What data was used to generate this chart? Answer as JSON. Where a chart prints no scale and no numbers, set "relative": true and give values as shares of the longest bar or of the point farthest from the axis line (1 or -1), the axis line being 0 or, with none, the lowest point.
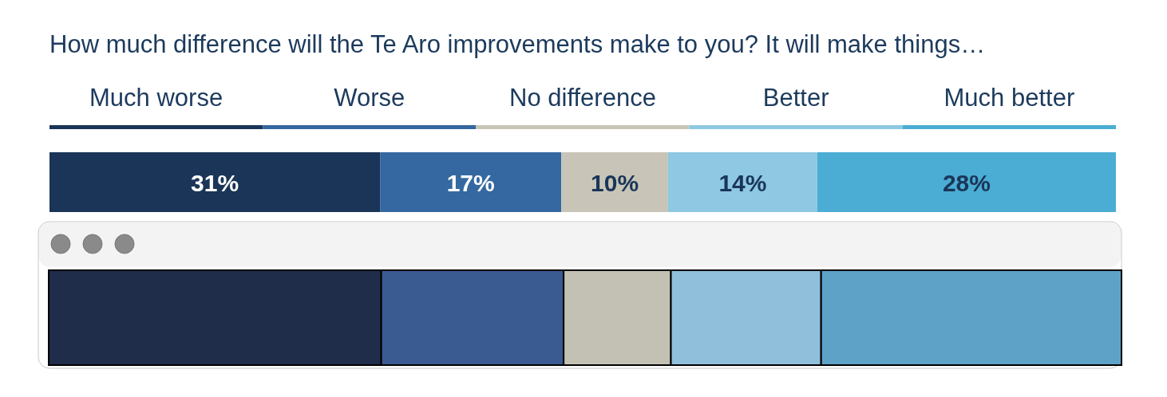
{
  "chart_data": [
    {
      "type": "bar",
      "title": "How much difference will the Te Aro improvements make to you? It will make things…",
      "orientation": "horizontal",
      "stacked": true,
      "categories": [
        null
      ],
      "xlim": [
        0,
        100
      ],
      "legend": "top",
      "data_labels": true,
      "series": [
        {
          "name": "Much worse",
          "color": "#1a3558",
          "values": [
            31
          ],
          "value_labels": [
            "31%"
          ]
        },
        {
          "name": "Worse",
          "color": "#3568a0",
          "values": [
            17
          ],
          "value_labels": [
            "17%"
          ]
        },
        {
          "name": "No difference",
          "color": "#c8c5b8",
          "values": [
            10
          ],
          "value_labels": [
            "10%"
          ]
        },
        {
          "name": "Better",
          "color": "#8ec8e3",
          "values": [
            14
          ],
          "value_labels": [
            "14%"
          ]
        },
        {
          "name": "Much better",
          "color": "#4badd3",
          "values": [
            28
          ],
          "value_labels": [
            "28%"
          ]
        }
      ]
    },
    {
      "type": "bar",
      "orientation": "horizontal",
      "stacked": true,
      "relative": true,
      "categories": [
        null
      ],
      "series": [
        {
          "color": "#1f2d4b",
          "values": [
            0.31
          ]
        },
        {
          "color": "#3a5a92",
          "values": [
            0.17
          ]
        },
        {
          "color": "#c3c1b3",
          "values": [
            0.1
          ]
        },
        {
          "color": "#8fbfda",
          "values": [
            0.14
          ]
        },
        {
          "color": "#5fa2c8",
          "values": [
            0.28
          ]
        }
      ]
    }
  ]
}
